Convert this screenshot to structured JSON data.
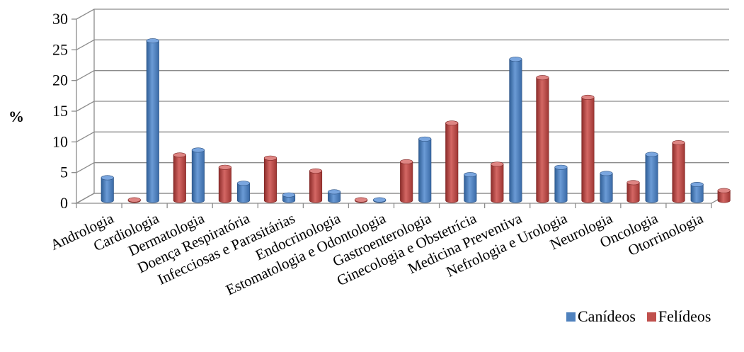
{
  "chart_data": {
    "type": "bar",
    "ylabel": "%",
    "xlabel": "",
    "ylim": [
      0,
      30
    ],
    "yticks": [
      "0",
      "5",
      "10",
      "15",
      "20",
      "25",
      "30"
    ],
    "grid": true,
    "legend_position": "bottom-right",
    "categories": [
      "Andrologia",
      "Cardiologia",
      "Dermatologia",
      "Doença Respiratória",
      "Infecciosas e Parasitárias",
      "Endocrinologia",
      "Estomatologia e Odontologia",
      "Gastroenterologia",
      "Ginecologia e Obstetrícia",
      "Medicina Preventiva",
      "Nefrologia e Urologia",
      "Neurologia",
      "Oncologia",
      "Otorrinologia"
    ],
    "series": [
      {
        "name": "Canídeos",
        "color": "#4f81bd",
        "values": [
          3.7,
          26.0,
          8.2,
          2.8,
          0.9,
          1.4,
          0.1,
          10.0,
          4.2,
          23.0,
          5.4,
          4.4,
          7.5,
          2.6
        ]
      },
      {
        "name": "Felídeos",
        "color": "#c0504d",
        "values": [
          0.1,
          7.4,
          5.4,
          6.9,
          4.8,
          0.1,
          6.3,
          12.6,
          5.9,
          20.0,
          16.8,
          2.9,
          9.4,
          1.6
        ]
      }
    ]
  }
}
